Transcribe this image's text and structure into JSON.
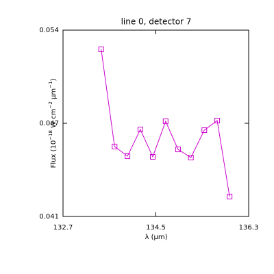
{
  "chart_data": {
    "type": "line",
    "title": "line 0, detector 7",
    "xlabel": "λ (μm)",
    "ylabel_parts": [
      "Flux (10",
      "−18",
      " W cm",
      "−2",
      " μm",
      "−1",
      ")"
    ],
    "x": [
      133.44,
      133.7,
      133.95,
      134.2,
      134.44,
      134.69,
      134.93,
      135.18,
      135.44,
      135.69,
      135.93
    ],
    "series": [
      {
        "color": "#cc00cc",
        "values": [
          0.05266,
          0.04588,
          0.04521,
          0.04707,
          0.04516,
          0.04764,
          0.04568,
          0.04511,
          0.04702,
          0.04769,
          0.04239
        ]
      }
    ],
    "xlim": [
      132.7,
      136.3
    ],
    "xticks": [
      132.7,
      134.5,
      136.3
    ],
    "ylim": [
      0.041,
      0.054
    ],
    "yticks": [
      0.041,
      {
        "value": 0.0475,
        "label": "0.047"
      },
      0.054
    ]
  }
}
